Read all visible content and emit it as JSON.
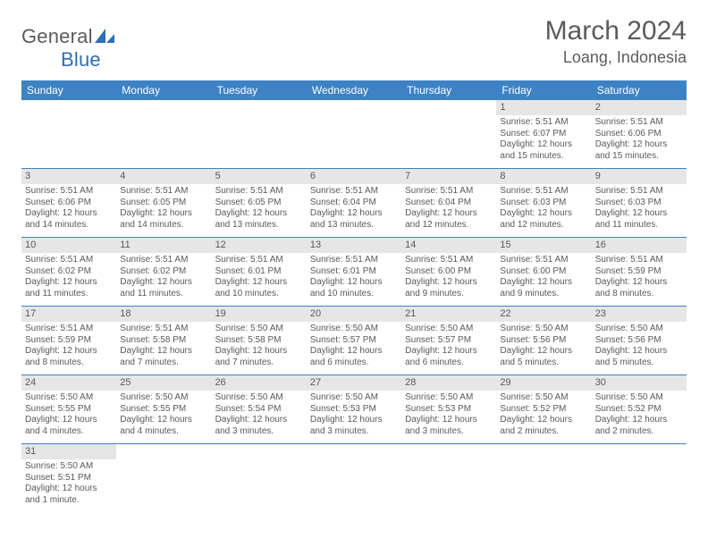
{
  "brand": {
    "text_gray": "General",
    "text_blue": "Blue",
    "logo_color": "#2f6fb3",
    "text_color_gray": "#5b5b5b"
  },
  "header": {
    "month_title": "March 2024",
    "location": "Loang, Indonesia"
  },
  "colors": {
    "header_bg": "#3d82c4",
    "header_text": "#ffffff",
    "daynum_bg": "#e6e6e6",
    "text_body": "#595959",
    "row_border": "#3d82c4"
  },
  "columns": [
    "Sunday",
    "Monday",
    "Tuesday",
    "Wednesday",
    "Thursday",
    "Friday",
    "Saturday"
  ],
  "weeks": [
    [
      null,
      null,
      null,
      null,
      null,
      {
        "d": "1",
        "sr": "5:51 AM",
        "ss": "6:07 PM",
        "dl": "12 hours and 15 minutes."
      },
      {
        "d": "2",
        "sr": "5:51 AM",
        "ss": "6:06 PM",
        "dl": "12 hours and 15 minutes."
      }
    ],
    [
      {
        "d": "3",
        "sr": "5:51 AM",
        "ss": "6:06 PM",
        "dl": "12 hours and 14 minutes."
      },
      {
        "d": "4",
        "sr": "5:51 AM",
        "ss": "6:05 PM",
        "dl": "12 hours and 14 minutes."
      },
      {
        "d": "5",
        "sr": "5:51 AM",
        "ss": "6:05 PM",
        "dl": "12 hours and 13 minutes."
      },
      {
        "d": "6",
        "sr": "5:51 AM",
        "ss": "6:04 PM",
        "dl": "12 hours and 13 minutes."
      },
      {
        "d": "7",
        "sr": "5:51 AM",
        "ss": "6:04 PM",
        "dl": "12 hours and 12 minutes."
      },
      {
        "d": "8",
        "sr": "5:51 AM",
        "ss": "6:03 PM",
        "dl": "12 hours and 12 minutes."
      },
      {
        "d": "9",
        "sr": "5:51 AM",
        "ss": "6:03 PM",
        "dl": "12 hours and 11 minutes."
      }
    ],
    [
      {
        "d": "10",
        "sr": "5:51 AM",
        "ss": "6:02 PM",
        "dl": "12 hours and 11 minutes."
      },
      {
        "d": "11",
        "sr": "5:51 AM",
        "ss": "6:02 PM",
        "dl": "12 hours and 11 minutes."
      },
      {
        "d": "12",
        "sr": "5:51 AM",
        "ss": "6:01 PM",
        "dl": "12 hours and 10 minutes."
      },
      {
        "d": "13",
        "sr": "5:51 AM",
        "ss": "6:01 PM",
        "dl": "12 hours and 10 minutes."
      },
      {
        "d": "14",
        "sr": "5:51 AM",
        "ss": "6:00 PM",
        "dl": "12 hours and 9 minutes."
      },
      {
        "d": "15",
        "sr": "5:51 AM",
        "ss": "6:00 PM",
        "dl": "12 hours and 9 minutes."
      },
      {
        "d": "16",
        "sr": "5:51 AM",
        "ss": "5:59 PM",
        "dl": "12 hours and 8 minutes."
      }
    ],
    [
      {
        "d": "17",
        "sr": "5:51 AM",
        "ss": "5:59 PM",
        "dl": "12 hours and 8 minutes."
      },
      {
        "d": "18",
        "sr": "5:51 AM",
        "ss": "5:58 PM",
        "dl": "12 hours and 7 minutes."
      },
      {
        "d": "19",
        "sr": "5:50 AM",
        "ss": "5:58 PM",
        "dl": "12 hours and 7 minutes."
      },
      {
        "d": "20",
        "sr": "5:50 AM",
        "ss": "5:57 PM",
        "dl": "12 hours and 6 minutes."
      },
      {
        "d": "21",
        "sr": "5:50 AM",
        "ss": "5:57 PM",
        "dl": "12 hours and 6 minutes."
      },
      {
        "d": "22",
        "sr": "5:50 AM",
        "ss": "5:56 PM",
        "dl": "12 hours and 5 minutes."
      },
      {
        "d": "23",
        "sr": "5:50 AM",
        "ss": "5:56 PM",
        "dl": "12 hours and 5 minutes."
      }
    ],
    [
      {
        "d": "24",
        "sr": "5:50 AM",
        "ss": "5:55 PM",
        "dl": "12 hours and 4 minutes."
      },
      {
        "d": "25",
        "sr": "5:50 AM",
        "ss": "5:55 PM",
        "dl": "12 hours and 4 minutes."
      },
      {
        "d": "26",
        "sr": "5:50 AM",
        "ss": "5:54 PM",
        "dl": "12 hours and 3 minutes."
      },
      {
        "d": "27",
        "sr": "5:50 AM",
        "ss": "5:53 PM",
        "dl": "12 hours and 3 minutes."
      },
      {
        "d": "28",
        "sr": "5:50 AM",
        "ss": "5:53 PM",
        "dl": "12 hours and 3 minutes."
      },
      {
        "d": "29",
        "sr": "5:50 AM",
        "ss": "5:52 PM",
        "dl": "12 hours and 2 minutes."
      },
      {
        "d": "30",
        "sr": "5:50 AM",
        "ss": "5:52 PM",
        "dl": "12 hours and 2 minutes."
      }
    ],
    [
      {
        "d": "31",
        "sr": "5:50 AM",
        "ss": "5:51 PM",
        "dl": "12 hours and 1 minute."
      },
      null,
      null,
      null,
      null,
      null,
      null
    ]
  ],
  "labels": {
    "sunrise": "Sunrise:",
    "sunset": "Sunset:",
    "daylight": "Daylight:"
  }
}
